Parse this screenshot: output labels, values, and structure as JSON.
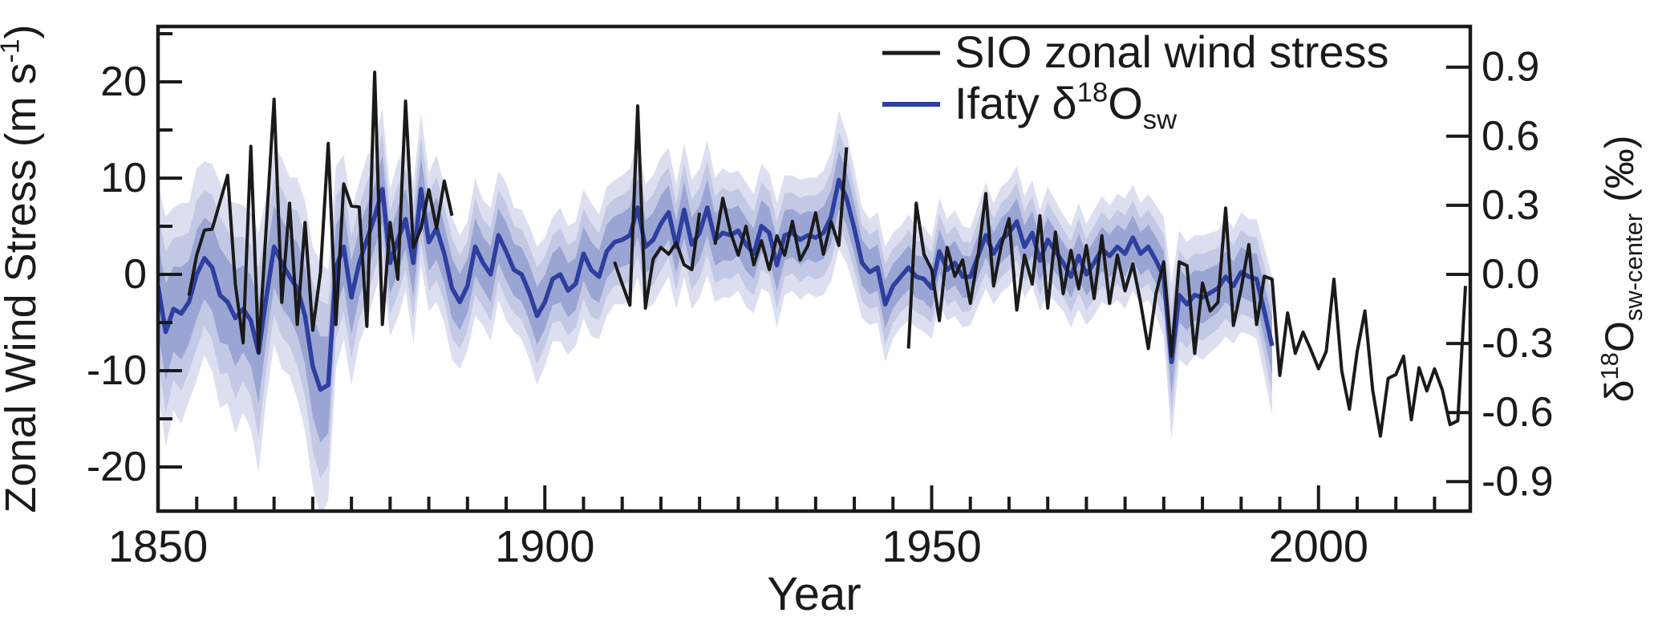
{
  "chart_data": {
    "type": "line",
    "title": "",
    "xlabel": "Year",
    "background": "#ffffff",
    "axis_color": "#1a1a1a",
    "x_range": [
      1850,
      2019.6
    ],
    "x_ticks_major": [
      1850,
      1900,
      1950,
      2000
    ],
    "x_tick_labels": [
      "1850",
      "1900",
      "1950",
      "2000"
    ],
    "x_minor_step": 5,
    "left_axis": {
      "label_parts": [
        {
          "t": "Zonal Wind Stress (m s"
        },
        {
          "t": "-1",
          "pos": "sup"
        },
        {
          "t": ")"
        }
      ],
      "range": [
        -24.6,
        25.75
      ],
      "ticks": [
        20,
        10,
        0,
        -10,
        -20
      ],
      "tick_labels": [
        "20",
        "10",
        "0",
        "-10",
        "-20"
      ],
      "minor_ticks": [
        25,
        15,
        5,
        -5,
        -15
      ]
    },
    "right_axis": {
      "label_parts": [
        {
          "t": "δ"
        },
        {
          "t": "18",
          "pos": "sup"
        },
        {
          "t": "O"
        },
        {
          "t": "sw-center",
          "pos": "sub"
        },
        {
          "t": " (‰)"
        }
      ],
      "range": [
        -1.03,
        1.08
      ],
      "ticks": [
        0.9,
        0.6,
        0.3,
        0.0,
        -0.3,
        -0.6,
        -0.9
      ],
      "tick_labels": [
        "0.9",
        "0.6",
        "0.3",
        "0.0",
        "-0.3",
        "-0.6",
        "-0.9"
      ]
    },
    "legend": [
      {
        "name": "SIO zonal wind stress",
        "color": "#1a1a1a",
        "parts": [
          {
            "t": "SIO zonal wind stress"
          }
        ]
      },
      {
        "name": "Ifaty d18Osw",
        "color": "#2e3f9f",
        "parts": [
          {
            "t": "Ifaty δ"
          },
          {
            "t": "18",
            "pos": "sup"
          },
          {
            "t": "O"
          },
          {
            "t": "sw",
            "pos": "sub"
          }
        ]
      }
    ],
    "series": {
      "wind": {
        "axis": "left",
        "color": "#1a1a1a",
        "line_width": 4,
        "segments": [
          {
            "start_year": 1854,
            "values": [
              -2.2,
              2,
              4.6,
              4.7,
              7.5,
              10.3,
              -1,
              -7.1,
              13.3,
              -8.1,
              5,
              18.2,
              -2.9,
              7.4,
              -5.2,
              5.4,
              -5.8,
              0.2,
              13.6,
              -5.2,
              9.4,
              7.1,
              7,
              -5.4,
              21,
              -5.2,
              5.4,
              -0.5,
              18,
              2.8,
              4.8,
              8.8,
              4.8,
              9.7,
              6.1
            ]
          },
          {
            "start_year": 1909,
            "values": [
              1.3,
              -1,
              -3.2,
              17.5,
              -3.5,
              1.6,
              2.8,
              2.1,
              3.3,
              1,
              0.5,
              6.4,
              null,
              3.1,
              7.9,
              4.4,
              2,
              5,
              1,
              3.5,
              0.5,
              4,
              2,
              5.5,
              1.5,
              3,
              6.4,
              2.1,
              5.5,
              3,
              13.2
            ]
          },
          {
            "start_year": 1947,
            "values": [
              -7.7,
              7.4,
              2.1,
              0.5,
              -4.8,
              2.8,
              -0.2,
              1.5,
              -3,
              2,
              8.4,
              -1.2,
              3,
              5.8,
              -3.7,
              2,
              -1,
              6.1,
              -3.5,
              4.4,
              -2,
              2.5,
              -1.5,
              3,
              -2.5,
              4,
              -3,
              2,
              -1.7,
              1.1,
              -2.9,
              -7.7,
              -2,
              1.3,
              -8.5,
              1.3,
              0.9,
              -8.2,
              -0.9,
              -3.8,
              -2.9,
              6.9,
              -5.3,
              -1.5,
              3.1,
              -5.2,
              -0.2,
              -0.5,
              -10.5,
              -4,
              -8.2,
              -6,
              -7.8,
              -9.8,
              -8,
              -0.5,
              -10,
              -14,
              -8,
              -3.8,
              -12,
              -16.8,
              -10.8,
              -10.4,
              -8.5,
              -15.1,
              -9.7,
              -12.1,
              -9.8,
              -12,
              -15.6,
              -15.2,
              -1.2
            ]
          }
        ]
      },
      "d18o": {
        "axis": "right",
        "color": "#2e3f9f",
        "line_width": 5.5,
        "start_year": 1850,
        "values": [
          -0.05,
          -0.25,
          -0.15,
          -0.17,
          -0.12,
          0,
          0.07,
          0.03,
          -0.09,
          -0.12,
          -0.19,
          -0.15,
          -0.2,
          -0.34,
          -0.1,
          0.12,
          0.05,
          -0.01,
          -0.06,
          -0.18,
          -0.4,
          -0.5,
          -0.48,
          0.03,
          0.12,
          -0.1,
          0.05,
          0.15,
          0.25,
          0.37,
          0.05,
          0.15,
          0.24,
          0.05,
          0.37,
          0.14,
          0.2,
          0.09,
          -0.06,
          -0.12,
          -0.05,
          0.12,
          0.05,
          0,
          0.17,
          0.1,
          0.02,
          0,
          -0.08,
          -0.18,
          -0.12,
          -0.02,
          0,
          -0.07,
          -0.04,
          0.09,
          0.02,
          -0.01,
          0.1,
          0.14,
          0.15,
          0.17,
          0.29,
          0.12,
          0.15,
          0.22,
          0.27,
          0.12,
          0.28,
          0.13,
          0.18,
          0.29,
          0.15,
          0.18,
          0.17,
          0.19,
          0.13,
          0.09,
          0.21,
          0.18,
          0.04,
          0.17,
          0.18,
          0.15,
          0.17,
          0.16,
          0.18,
          0.25,
          0.41,
          0.33,
          0.2,
          0.05,
          0.01,
          0.03,
          -0.13,
          -0.05,
          -0.01,
          0.03,
          -0.01,
          -0.02,
          -0.06,
          0.1,
          0.02,
          0.05,
          -0.01,
          -0.01,
          0.08,
          0.17,
          0.09,
          0.15,
          0.18,
          0.23,
          0.12,
          0.18,
          0.06,
          0.15,
          0.1,
          0.05,
          -0.01,
          0.08,
          0,
          0.05,
          0.11,
          0.08,
          0.12,
          0.09,
          0.16,
          0.09,
          0.12,
          0.06,
          -0.01,
          -0.38,
          -0.09,
          -0.13,
          -0.09,
          -0.1,
          -0.08,
          -0.06,
          -0.01,
          -0.05,
          0.01,
          -0.01,
          -0.02,
          -0.16,
          -0.31
        ],
        "band_outer_halfwidth": [
          0.45,
          0.5,
          0.44,
          0.48,
          0.43,
          0.46,
          0.42,
          0.45,
          0.49,
          0.44,
          0.5,
          0.45,
          0.47,
          0.52,
          0.44,
          0.42,
          0.46,
          0.43,
          0.48,
          0.5,
          0.52,
          0.55,
          0.5,
          0.44,
          0.4,
          0.38,
          0.35,
          0.36,
          0.33,
          0.35,
          0.32,
          0.34,
          0.31,
          0.35,
          0.33,
          0.3,
          0.32,
          0.3,
          0.31,
          0.29,
          0.28,
          0.3,
          0.27,
          0.29,
          0.28,
          0.3,
          0.27,
          0.28,
          0.29,
          0.3,
          0.28,
          0.27,
          0.29,
          0.28,
          0.27,
          0.28,
          0.29,
          0.27,
          0.28,
          0.27,
          0.28,
          0.29,
          0.3,
          0.27,
          0.28,
          0.29,
          0.28,
          0.27,
          0.29,
          0.28,
          0.28,
          0.29,
          0.27,
          0.28,
          0.27,
          0.26,
          0.27,
          0.26,
          0.27,
          0.26,
          0.27,
          0.26,
          0.25,
          0.26,
          0.25,
          0.26,
          0.27,
          0.28,
          0.3,
          0.28,
          0.26,
          0.24,
          0.23,
          0.24,
          0.25,
          0.23,
          0.22,
          0.23,
          0.22,
          0.23,
          0.22,
          0.23,
          0.22,
          0.23,
          0.22,
          0.21,
          0.22,
          0.23,
          0.22,
          0.23,
          0.23,
          0.24,
          0.22,
          0.23,
          0.22,
          0.23,
          0.22,
          0.21,
          0.22,
          0.23,
          0.22,
          0.23,
          0.23,
          0.22,
          0.23,
          0.24,
          0.23,
          0.22,
          0.23,
          0.24,
          0.26,
          0.34,
          0.28,
          0.27,
          0.26,
          0.27,
          0.26,
          0.25,
          0.26,
          0.25,
          0.26,
          0.25,
          0.26,
          0.28,
          0.3
        ],
        "band_factors": [
          1,
          0.7,
          0.42
        ],
        "band_colors": [
          "#dcdff0",
          "#c3c9e5",
          "#9aa5d3"
        ]
      }
    }
  }
}
